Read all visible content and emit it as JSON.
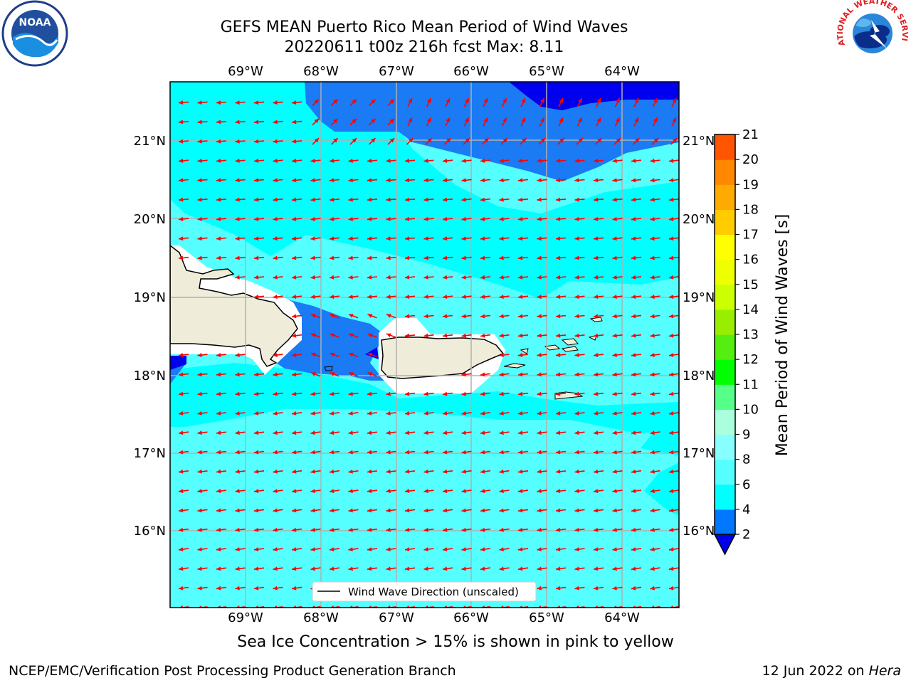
{
  "title_line1": "GEFS MEAN Puerto Rico Mean Period of Wind Waves",
  "title_line2": "20220611 t00z 216h fcst   Max: 8.11",
  "subtitle": "Sea Ice Concentration > 15% is shown in pink to yellow",
  "footer_left": "NCEP/EMC/Verification Post Processing Product Generation Branch",
  "footer_date": "12 Jun 2022 on ",
  "footer_host": "Hera",
  "legend_label": "Wind Wave Direction (unscaled)",
  "colorbar_title": "Mean Period of Wind Waves [s]",
  "lon_labels": [
    "69°W",
    "68°W",
    "67°W",
    "66°W",
    "65°W",
    "64°W"
  ],
  "lat_labels": [
    "21°N",
    "20°N",
    "19°N",
    "18°N",
    "17°N",
    "16°N"
  ],
  "colorbar_ticks": [
    "2",
    "4",
    "6",
    "8",
    "9",
    "10",
    "11",
    "12",
    "13",
    "14",
    "15",
    "16",
    "17",
    "18",
    "19",
    "20",
    "21"
  ],
  "colorbar_colors": [
    "#0077ff",
    "#00ffff",
    "#55ffff",
    "#88ffff",
    "#aaffdd",
    "#55ff88",
    "#00ff00",
    "#55ee11",
    "#99ee00",
    "#ccff00",
    "#eeff00",
    "#ffff00",
    "#ffcc00",
    "#ffaa00",
    "#ff8800",
    "#ff5500",
    "#ff2200",
    "#ff0000"
  ],
  "colors": {
    "ocean_light": "#55ffff",
    "ocean_cyan": "#00ffff",
    "ocean_blue": "#1a7bf5",
    "ocean_deep": "#0000ee",
    "land": "#efedd9",
    "arrow": "#ff0000",
    "grid": "#b0b0b0"
  },
  "logos": {
    "left_text": "NOAA",
    "right_text": "NATIONAL WEATHER SERVICE"
  }
}
